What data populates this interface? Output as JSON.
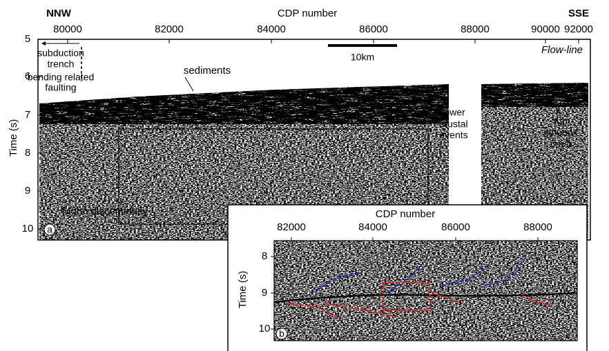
{
  "panel_a": {
    "title": "CDP number",
    "left_label": "NNW",
    "right_label": "SSE",
    "x_ticks": [
      80000,
      82000,
      84000,
      86000,
      88000,
      90000,
      92000
    ],
    "y_label": "Time (s)",
    "y_ticks": [
      5,
      6,
      7,
      8,
      9,
      10
    ],
    "scale_bar": "10km",
    "profile": "Flow-line",
    "annotations": {
      "trench": [
        "subduction",
        "trench"
      ],
      "faulting": [
        "bending related",
        "faulting"
      ],
      "sediments": "sediments",
      "lower_crustal": [
        "lower",
        "crustal",
        "events"
      ],
      "top_crust": [
        "top",
        "ignuous",
        "crust"
      ],
      "moho": "Moho discontinuity"
    },
    "panel_label": "a"
  },
  "panel_b": {
    "title": "CDP number",
    "x_ticks": [
      82000,
      84000,
      86000,
      88000
    ],
    "y_label": "Time (s)",
    "y_ticks": [
      8,
      9,
      10
    ],
    "panel_label": "b"
  }
}
